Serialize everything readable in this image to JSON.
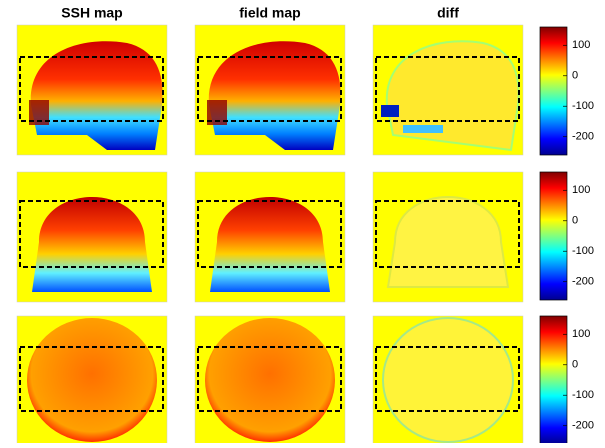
{
  "column_titles": [
    "SSH map",
    "field map",
    "diff"
  ],
  "colorbars": [
    {
      "lim": [
        -260,
        160
      ],
      "ticks": [
        100,
        0,
        -100,
        -200
      ]
    },
    {
      "lim": [
        -260,
        160
      ],
      "ticks": [
        100,
        0,
        -100,
        -200
      ]
    },
    {
      "lim": [
        -260,
        160
      ],
      "ticks": [
        100,
        0,
        -100,
        -200
      ]
    }
  ]
}
